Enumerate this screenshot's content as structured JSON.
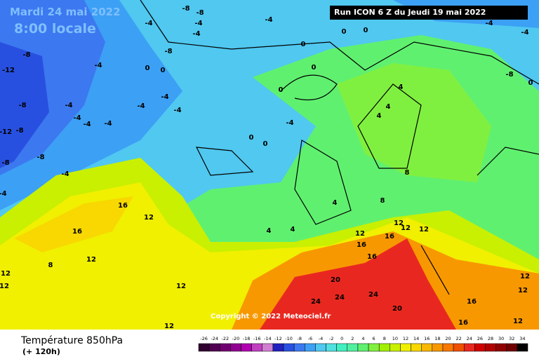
{
  "header": {
    "date": "Mardi 24 mai 2022",
    "time": "8:00 locale",
    "run": "Run ICON 6 Z du Jeudi 19 mai 2022"
  },
  "copyright": "Copyright © 2022 Meteociel.fr",
  "footer": {
    "title": "Température 850hPa",
    "subtitle": "(+ 120h)"
  },
  "scale": {
    "values": [
      -26,
      -24,
      -22,
      -20,
      -18,
      -16,
      -14,
      -12,
      -10,
      -8,
      -6,
      -4,
      -2,
      0,
      2,
      4,
      6,
      8,
      10,
      12,
      14,
      16,
      18,
      20,
      22,
      24,
      26,
      28,
      30,
      32,
      34
    ],
    "colors": [
      "#300030",
      "#500050",
      "#700070",
      "#900090",
      "#b000b0",
      "#c040c0",
      "#d080d0",
      "#2020c0",
      "#2850e0",
      "#3c78f0",
      "#3ca0f5",
      "#50c8f0",
      "#50e0e0",
      "#40f0c0",
      "#50f0a0",
      "#60f070",
      "#80f040",
      "#a0f000",
      "#c8f000",
      "#f0f000",
      "#f8d800",
      "#f8b800",
      "#f89800",
      "#f87800",
      "#f05000",
      "#e82820",
      "#d00000",
      "#b00000",
      "#900000",
      "#700000",
      "#000000"
    ]
  },
  "map": {
    "labels": [
      "-8",
      "-8",
      "-4",
      "-4",
      "-8",
      "-8",
      "-12",
      "-4",
      "-4",
      "0",
      "0",
      "-4",
      "-4",
      "-8",
      "-4",
      "-4",
      "-4",
      "-4",
      "-12",
      "-8",
      "-8",
      "-4",
      "0",
      "0",
      "0",
      "0",
      "0",
      "0",
      "0",
      "-4",
      "-4",
      "-4",
      "4",
      "4",
      "4",
      "8",
      "8",
      "-8",
      "-4",
      "-8",
      "0",
      "-4",
      "-4",
      "16",
      "16",
      "12",
      "12",
      "12",
      "12",
      "8",
      "12",
      "12",
      "16",
      "16",
      "16",
      "12",
      "12",
      "20",
      "24",
      "24",
      "24",
      "20",
      "16",
      "16",
      "12",
      "12",
      "12",
      "4",
      "4",
      "4",
      "12",
      "12"
    ]
  }
}
